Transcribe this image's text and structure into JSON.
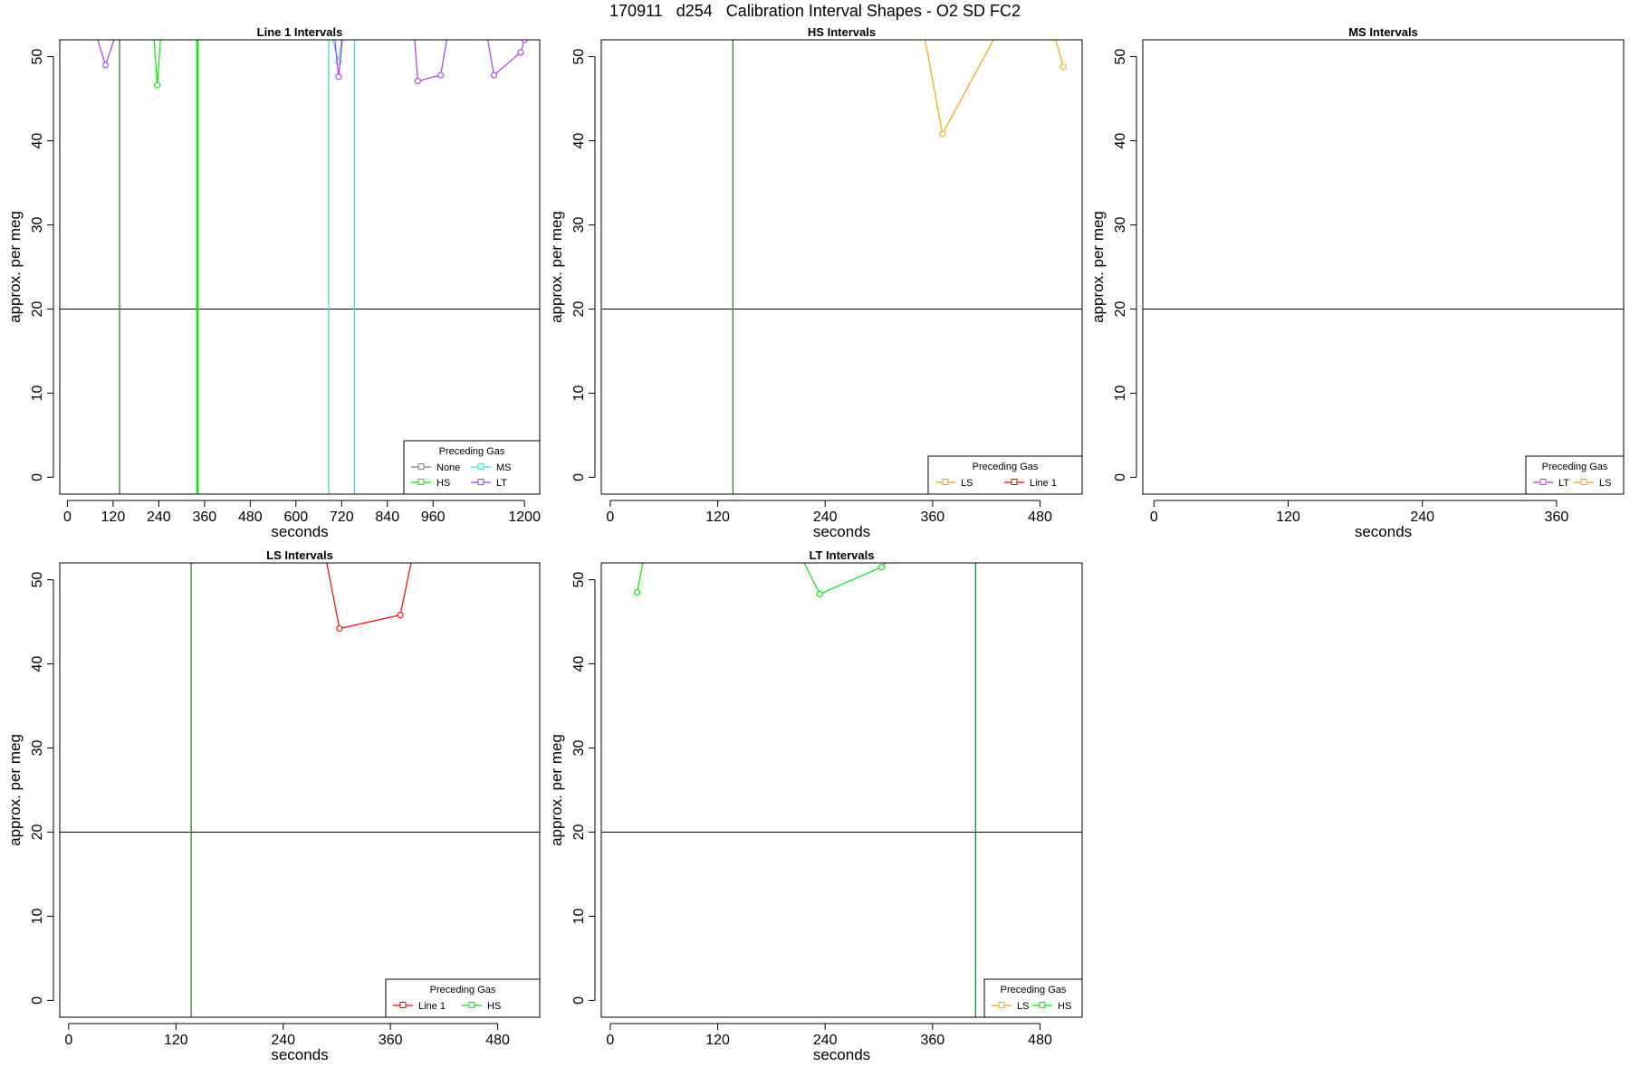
{
  "figure": {
    "title": "170911   d254   Calibration Interval Shapes - O2 SD FC2"
  },
  "chart_data": [
    {
      "type": "line",
      "title": "Line 1 Intervals",
      "xlabel": "seconds",
      "ylabel": "approx. per meg",
      "xlim": [
        -20,
        1240
      ],
      "ylim": [
        -2,
        52
      ],
      "xticks": [
        0,
        120,
        240,
        360,
        480,
        600,
        720,
        840,
        960,
        1200
      ],
      "yticks": [
        0,
        10,
        20,
        30,
        40,
        50
      ],
      "hline": 20,
      "vlines": [
        {
          "x": 137,
          "color": "#228b22"
        },
        {
          "x": 340,
          "color": "#00ee00"
        },
        {
          "x": 343,
          "color": "#00ee00"
        },
        {
          "x": 686,
          "color": "#40e0d0"
        },
        {
          "x": 754,
          "color": "#40e0d0"
        }
      ],
      "legend": {
        "title": "Preceding Gas",
        "ncol": 2,
        "position": "bottom-right",
        "entries": [
          {
            "name": "None",
            "color": "#808080"
          },
          {
            "name": "MS",
            "color": "#40e0d0"
          },
          {
            "name": "HS",
            "color": "#00ee00"
          },
          {
            "name": "LT",
            "color": "#b23aee"
          }
        ]
      },
      "series": [
        {
          "name": "LT",
          "color": "#b23aee",
          "points": [
            [
              73,
              53
            ],
            [
              100,
              49
            ],
            [
              130,
              53
            ]
          ]
        },
        {
          "name": "HS",
          "color": "#00ee00",
          "points": [
            [
              226,
              53
            ],
            [
              236,
              46.6
            ],
            [
              246,
              53
            ]
          ]
        },
        {
          "name": "MS",
          "color": "#40e0d0",
          "points": [
            [
              690,
              53
            ],
            [
              712,
              49.4
            ],
            [
              722,
              53
            ]
          ]
        },
        {
          "name": "LT",
          "color": "#b23aee",
          "points": [
            [
              700,
              53
            ],
            [
              712,
              47.6
            ],
            [
              724,
              53
            ]
          ]
        },
        {
          "name": "LT",
          "color": "#b23aee",
          "points": [
            [
              910,
              53
            ],
            [
              920,
              47.1
            ],
            [
              980,
              47.8
            ],
            [
              1000,
              53
            ]
          ]
        },
        {
          "name": "LT",
          "color": "#b23aee",
          "points": [
            [
              1100,
              53
            ],
            [
              1120,
              47.8
            ],
            [
              1190,
              50.5
            ],
            [
              1200,
              52
            ]
          ]
        }
      ]
    },
    {
      "type": "line",
      "title": "HS Intervals",
      "xlabel": "seconds",
      "ylabel": "approx. per meg",
      "xlim": [
        -10,
        527
      ],
      "ylim": [
        -2,
        52
      ],
      "xticks": [
        0,
        120,
        240,
        360,
        480
      ],
      "yticks": [
        0,
        10,
        20,
        30,
        40,
        50
      ],
      "hline": 20,
      "vlines": [
        {
          "x": 137,
          "color": "#228b22"
        }
      ],
      "legend": {
        "title": "Preceding Gas",
        "ncol": 2,
        "position": "bottom-right",
        "entries": [
          {
            "name": "LS",
            "color": "#ffa500"
          },
          {
            "name": "Line 1",
            "color": "#ff0000"
          }
        ]
      },
      "series": [
        {
          "name": "LS",
          "color": "#ffa500",
          "points": [
            [
              350,
              53
            ],
            [
              371,
              40.8
            ],
            [
              433,
              53
            ]
          ]
        },
        {
          "name": "LS",
          "color": "#ffa500",
          "points": [
            [
              495,
              53
            ],
            [
              506,
              48.8
            ]
          ]
        }
      ]
    },
    {
      "type": "line",
      "title": "MS Intervals",
      "xlabel": "seconds",
      "ylabel": "approx. per meg",
      "xlim": [
        -10,
        420
      ],
      "ylim": [
        -2,
        52
      ],
      "xticks": [
        0,
        120,
        240,
        360
      ],
      "yticks": [
        0,
        10,
        20,
        30,
        40,
        50
      ],
      "hline": 20,
      "vlines": [],
      "legend": {
        "title": "Preceding Gas",
        "ncol": 2,
        "position": "bottom-right",
        "entries": [
          {
            "name": "LT",
            "color": "#b23aee"
          },
          {
            "name": "LS",
            "color": "#ffa500"
          }
        ]
      },
      "series": []
    },
    {
      "type": "line",
      "title": "LS Intervals",
      "xlabel": "seconds",
      "ylabel": "approx. per meg",
      "xlim": [
        -10,
        527
      ],
      "ylim": [
        -2,
        52
      ],
      "xticks": [
        0,
        120,
        240,
        360,
        480
      ],
      "yticks": [
        0,
        10,
        20,
        30,
        40,
        50
      ],
      "hline": 20,
      "vlines": [
        {
          "x": 137,
          "color": "#228b22"
        }
      ],
      "legend": {
        "title": "Preceding Gas",
        "ncol": 2,
        "position": "bottom-right",
        "entries": [
          {
            "name": "Line 1",
            "color": "#ff0000"
          },
          {
            "name": "HS",
            "color": "#00ee00"
          }
        ]
      },
      "series": [
        {
          "name": "Line 1",
          "color": "#ff0000",
          "points": [
            [
              287,
              53
            ],
            [
              303,
              44.2
            ],
            [
              371,
              45.8
            ],
            [
              385,
              53
            ]
          ]
        }
      ]
    },
    {
      "type": "line",
      "title": "LT Intervals",
      "xlabel": "seconds",
      "ylabel": "approx. per meg",
      "xlim": [
        -10,
        527
      ],
      "ylim": [
        -2,
        52
      ],
      "xticks": [
        0,
        120,
        240,
        360,
        480
      ],
      "yticks": [
        0,
        10,
        20,
        30,
        40,
        50
      ],
      "hline": 20,
      "vlines": [
        {
          "x": 408,
          "color": "#228b22"
        }
      ],
      "legend": {
        "title": "Preceding Gas",
        "ncol": 2,
        "position": "bottom-right",
        "entries": [
          {
            "name": "LS",
            "color": "#ffa500"
          },
          {
            "name": "HS",
            "color": "#00ee00"
          }
        ]
      },
      "series": [
        {
          "name": "HS",
          "color": "#00ee00",
          "points": [
            [
              30,
              48.5
            ],
            [
              38,
              53
            ]
          ]
        },
        {
          "name": "HS",
          "color": "#00ee00",
          "points": [
            [
              212,
              53
            ],
            [
              234,
              48.3
            ],
            [
              303,
              51.5
            ],
            [
              312,
              52.5
            ]
          ]
        }
      ]
    }
  ]
}
